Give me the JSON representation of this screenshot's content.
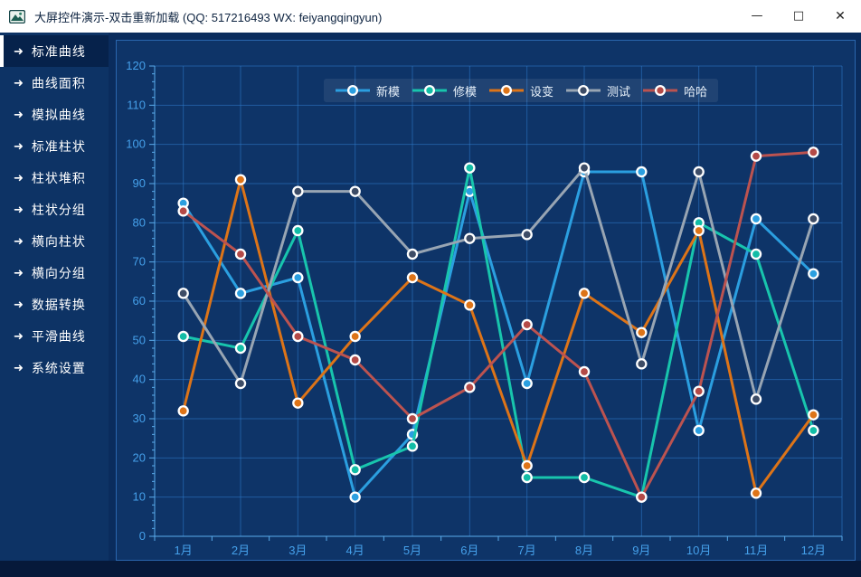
{
  "window": {
    "title": "大屏控件演示-双击重新加载 (QQ: 517216493  WX: feiyangqingyun)",
    "controls": {
      "minimize": "—",
      "maximize": "□",
      "close": "✕"
    },
    "icons": {
      "app": "picture-icon"
    }
  },
  "sidebar": {
    "arrow_icon": "➜",
    "items": [
      {
        "key": "standard-curve",
        "label": "标准曲线",
        "selected": true
      },
      {
        "key": "curve-area",
        "label": "曲线面积",
        "selected": false
      },
      {
        "key": "simulated-curve",
        "label": "模拟曲线",
        "selected": false
      },
      {
        "key": "standard-bar",
        "label": "标准柱状",
        "selected": false
      },
      {
        "key": "bar-stacked",
        "label": "柱状堆积",
        "selected": false
      },
      {
        "key": "bar-grouped",
        "label": "柱状分组",
        "selected": false
      },
      {
        "key": "horizontal-bar",
        "label": "横向柱状",
        "selected": false
      },
      {
        "key": "horizontal-grouped",
        "label": "横向分组",
        "selected": false
      },
      {
        "key": "data-transform",
        "label": "数据转换",
        "selected": false
      },
      {
        "key": "smooth-curve",
        "label": "平滑曲线",
        "selected": false
      },
      {
        "key": "system-settings",
        "label": "系统设置",
        "selected": false
      }
    ]
  },
  "chart_data": {
    "type": "line",
    "categories": [
      "1月",
      "2月",
      "3月",
      "4月",
      "5月",
      "6月",
      "7月",
      "8月",
      "9月",
      "10月",
      "11月",
      "12月"
    ],
    "series": [
      {
        "key": "new-mold",
        "name": "新模",
        "color": "#2b9fe0",
        "marker": "#2b9fe0",
        "values": [
          85,
          62,
          66,
          10,
          26,
          88,
          39,
          93,
          93,
          27,
          81,
          67
        ]
      },
      {
        "key": "mold-repair",
        "name": "修模",
        "color": "#18c5ad",
        "marker": "#12bda6",
        "values": [
          51,
          48,
          78,
          17,
          23,
          94,
          15,
          15,
          10,
          80,
          72,
          27
        ]
      },
      {
        "key": "design-change",
        "name": "设变",
        "color": "#dd7418",
        "marker": "#dd7418",
        "values": [
          32,
          91,
          34,
          51,
          66,
          59,
          18,
          62,
          52,
          78,
          11,
          31
        ]
      },
      {
        "key": "test",
        "name": "测试",
        "color": "#98a5b3",
        "marker": "#3d4c66",
        "values": [
          62,
          39,
          88,
          88,
          72,
          76,
          77,
          94,
          44,
          93,
          35,
          81
        ]
      },
      {
        "key": "haha",
        "name": "哈哈",
        "color": "#bc5350",
        "marker": "#b44a47",
        "values": [
          83,
          72,
          51,
          45,
          30,
          38,
          54,
          42,
          10,
          37,
          97,
          98
        ]
      }
    ],
    "ylim": [
      0,
      120
    ],
    "ytick_step": 10,
    "grid": true,
    "legend_position": "top-center"
  }
}
